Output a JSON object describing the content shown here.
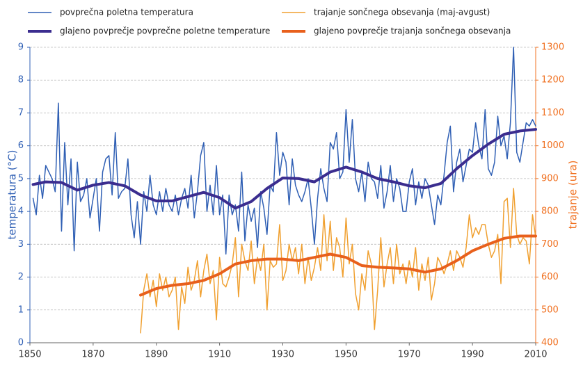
{
  "chart_data": {
    "type": "line",
    "y_label": "temperatura (°C)",
    "y2_label": "trajanje (ura)",
    "xlim": [
      1850,
      2010
    ],
    "xticks": [
      1850,
      1870,
      1890,
      1910,
      1930,
      1950,
      1970,
      1990,
      2010
    ],
    "ylim": [
      0,
      9
    ],
    "yticks": [
      0,
      1,
      2,
      3,
      4,
      5,
      6,
      7,
      8,
      9
    ],
    "y2lim": [
      400,
      1300
    ],
    "y2ticks": [
      400,
      500,
      600,
      700,
      800,
      900,
      1000,
      1100,
      1200,
      1300
    ],
    "grid": true,
    "legend_position": "top",
    "y_color": "#2f5fb4",
    "y2_color": "#f07020",
    "series": [
      {
        "name": "povprečna poletna temperatura",
        "color": "#2f5fb4",
        "line_width": 1.5,
        "axis": "y",
        "x": [
          1851,
          1852,
          1853,
          1854,
          1855,
          1856,
          1857,
          1858,
          1859,
          1860,
          1861,
          1862,
          1863,
          1864,
          1865,
          1866,
          1867,
          1868,
          1869,
          1870,
          1871,
          1872,
          1873,
          1874,
          1875,
          1876,
          1877,
          1878,
          1879,
          1880,
          1881,
          1882,
          1883,
          1884,
          1885,
          1886,
          1887,
          1888,
          1889,
          1890,
          1891,
          1892,
          1893,
          1894,
          1895,
          1896,
          1897,
          1898,
          1899,
          1900,
          1901,
          1902,
          1903,
          1904,
          1905,
          1906,
          1907,
          1908,
          1909,
          1910,
          1911,
          1912,
          1913,
          1914,
          1915,
          1916,
          1917,
          1918,
          1919,
          1920,
          1921,
          1922,
          1923,
          1924,
          1925,
          1926,
          1927,
          1928,
          1929,
          1930,
          1931,
          1932,
          1933,
          1934,
          1935,
          1936,
          1937,
          1938,
          1939,
          1940,
          1941,
          1942,
          1943,
          1944,
          1945,
          1946,
          1947,
          1948,
          1949,
          1950,
          1951,
          1952,
          1953,
          1954,
          1955,
          1956,
          1957,
          1958,
          1959,
          1960,
          1961,
          1962,
          1963,
          1964,
          1965,
          1966,
          1967,
          1968,
          1969,
          1970,
          1971,
          1972,
          1973,
          1974,
          1975,
          1976,
          1977,
          1978,
          1979,
          1980,
          1981,
          1982,
          1983,
          1984,
          1985,
          1986,
          1987,
          1988,
          1989,
          1990,
          1991,
          1992,
          1993,
          1994,
          1995,
          1996,
          1997,
          1998,
          1999,
          2000,
          2001,
          2002,
          2003,
          2004,
          2005,
          2006,
          2007,
          2008,
          2009,
          2010
        ],
        "values": [
          4.4,
          3.9,
          5.1,
          4.4,
          5.4,
          5.2,
          5.0,
          4.6,
          7.3,
          3.4,
          6.1,
          4.2,
          5.6,
          2.8,
          5.5,
          4.3,
          4.5,
          5.0,
          3.8,
          4.4,
          5.0,
          3.4,
          5.2,
          5.6,
          5.7,
          4.5,
          6.4,
          4.4,
          4.6,
          4.7,
          5.6,
          3.9,
          3.2,
          4.3,
          3.0,
          4.6,
          4.0,
          5.1,
          4.2,
          3.9,
          4.6,
          4.0,
          4.7,
          4.2,
          4.0,
          4.5,
          3.9,
          4.4,
          4.7,
          4.1,
          5.1,
          3.8,
          4.6,
          5.7,
          6.1,
          4.0,
          4.8,
          3.9,
          5.4,
          3.9,
          4.5,
          2.7,
          4.5,
          3.9,
          4.2,
          3.4,
          5.2,
          3.1,
          4.2,
          3.7,
          4.1,
          2.9,
          4.6,
          4.1,
          3.3,
          4.8,
          4.6,
          6.4,
          5.1,
          5.8,
          5.5,
          4.2,
          5.6,
          4.8,
          4.5,
          4.3,
          4.6,
          5.0,
          4.1,
          3.0,
          4.4,
          5.3,
          4.7,
          4.3,
          6.1,
          5.9,
          6.4,
          5.0,
          5.2,
          7.1,
          5.5,
          6.8,
          5.0,
          4.6,
          5.2,
          4.3,
          5.5,
          5.0,
          4.9,
          4.4,
          5.4,
          4.1,
          4.6,
          5.4,
          4.3,
          5.0,
          4.7,
          4.0,
          4.0,
          4.9,
          5.3,
          4.2,
          4.9,
          4.4,
          5.0,
          4.8,
          4.2,
          3.6,
          4.5,
          4.2,
          5.1,
          6.1,
          6.6,
          4.6,
          5.5,
          5.9,
          4.9,
          5.4,
          5.9,
          5.8,
          6.7,
          6.0,
          5.6,
          7.1,
          5.3,
          5.1,
          5.5,
          6.9,
          6.0,
          6.3,
          5.6,
          6.7,
          9.0,
          5.8,
          5.5,
          6.1,
          6.7,
          6.6,
          6.8,
          6.6
        ]
      },
      {
        "name": "trajanje sončnega obsevanja (maj-avgust)",
        "color": "#f0a030",
        "line_width": 1.5,
        "axis": "y2",
        "x": [
          1885,
          1886,
          1887,
          1888,
          1889,
          1890,
          1891,
          1892,
          1893,
          1894,
          1895,
          1896,
          1897,
          1898,
          1899,
          1900,
          1901,
          1902,
          1903,
          1904,
          1905,
          1906,
          1907,
          1908,
          1909,
          1910,
          1911,
          1912,
          1913,
          1914,
          1915,
          1916,
          1917,
          1918,
          1919,
          1920,
          1921,
          1922,
          1923,
          1924,
          1925,
          1926,
          1927,
          1928,
          1929,
          1930,
          1931,
          1932,
          1933,
          1934,
          1935,
          1936,
          1937,
          1938,
          1939,
          1940,
          1941,
          1942,
          1943,
          1944,
          1945,
          1946,
          1947,
          1948,
          1949,
          1950,
          1951,
          1952,
          1953,
          1954,
          1955,
          1956,
          1957,
          1958,
          1959,
          1960,
          1961,
          1962,
          1963,
          1964,
          1965,
          1966,
          1967,
          1968,
          1969,
          1970,
          1971,
          1972,
          1973,
          1974,
          1975,
          1976,
          1977,
          1978,
          1979,
          1980,
          1981,
          1982,
          1983,
          1984,
          1985,
          1986,
          1987,
          1988,
          1989,
          1990,
          1991,
          1992,
          1993,
          1994,
          1995,
          1996,
          1997,
          1998,
          1999,
          2000,
          2001,
          2002,
          2003,
          2004,
          2005,
          2006,
          2007,
          2008,
          2009,
          2010
        ],
        "values": [
          430,
          560,
          610,
          540,
          590,
          510,
          610,
          560,
          600,
          540,
          560,
          600,
          440,
          570,
          520,
          630,
          560,
          590,
          650,
          540,
          620,
          670,
          580,
          620,
          470,
          660,
          580,
          570,
          600,
          640,
          720,
          540,
          700,
          650,
          620,
          710,
          580,
          660,
          620,
          700,
          500,
          650,
          630,
          640,
          760,
          590,
          620,
          700,
          650,
          690,
          610,
          700,
          580,
          660,
          590,
          630,
          690,
          620,
          790,
          650,
          770,
          620,
          720,
          690,
          600,
          780,
          640,
          700,
          550,
          500,
          610,
          560,
          680,
          640,
          440,
          560,
          720,
          570,
          640,
          690,
          580,
          700,
          610,
          640,
          580,
          650,
          600,
          690,
          560,
          640,
          590,
          660,
          530,
          580,
          660,
          640,
          610,
          640,
          680,
          620,
          680,
          660,
          630,
          690,
          790,
          720,
          750,
          730,
          760,
          760,
          700,
          660,
          680,
          730,
          580,
          830,
          840,
          690,
          870,
          730,
          700,
          720,
          710,
          640,
          790,
          720
        ]
      },
      {
        "name": "glajeno povprečje povprečne poletne temperature",
        "color": "#3b2d8f",
        "line_width": 4,
        "axis": "y",
        "x": [
          1851,
          1855,
          1860,
          1865,
          1870,
          1875,
          1880,
          1885,
          1890,
          1895,
          1900,
          1905,
          1910,
          1915,
          1920,
          1925,
          1930,
          1935,
          1940,
          1945,
          1950,
          1955,
          1960,
          1965,
          1970,
          1975,
          1980,
          1985,
          1990,
          1995,
          2000,
          2005,
          2010
        ],
        "values": [
          4.82,
          4.9,
          4.88,
          4.65,
          4.8,
          4.88,
          4.78,
          4.5,
          4.32,
          4.32,
          4.45,
          4.58,
          4.42,
          4.1,
          4.3,
          4.7,
          5.02,
          5.0,
          4.9,
          5.2,
          5.35,
          5.2,
          5.0,
          4.9,
          4.78,
          4.72,
          4.85,
          5.3,
          5.7,
          6.05,
          6.35,
          6.45,
          6.5
        ]
      },
      {
        "name": "glajeno povprečje trajanja sončnega obsevanja",
        "color": "#e8601c",
        "line_width": 4,
        "axis": "y2",
        "x": [
          1885,
          1890,
          1895,
          1900,
          1905,
          1910,
          1915,
          1920,
          1925,
          1930,
          1935,
          1940,
          1945,
          1950,
          1955,
          1960,
          1965,
          1970,
          1975,
          1980,
          1985,
          1990,
          1995,
          2000,
          2005,
          2010
        ],
        "values": [
          545,
          565,
          575,
          580,
          590,
          610,
          640,
          650,
          655,
          655,
          650,
          660,
          670,
          660,
          635,
          630,
          628,
          625,
          615,
          625,
          650,
          680,
          700,
          718,
          725,
          725
        ]
      }
    ]
  }
}
